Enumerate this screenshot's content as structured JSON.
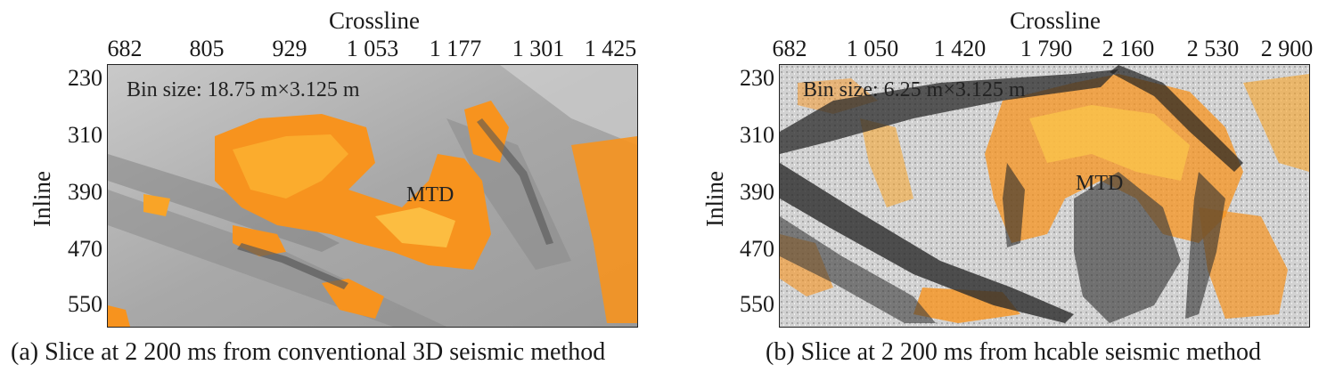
{
  "panels": [
    {
      "x_title": "Crossline",
      "y_title": "Inline",
      "x_ticks": [
        "682",
        "805",
        "929",
        "1 053",
        "1 177",
        "1 301",
        "1 425"
      ],
      "y_ticks": [
        "230",
        "310",
        "390",
        "470",
        "550"
      ],
      "bin_size": "Bin size: 18.75 m×3.125 m",
      "feature_label": "MTD",
      "caption": "(a) Slice at 2 200 ms from conventional 3D seismic method"
    },
    {
      "x_title": "Crossline",
      "y_title": "Inline",
      "x_ticks": [
        "682",
        "1 050",
        "1 420",
        "1 790",
        "2 160",
        "2 530",
        "2 900"
      ],
      "y_ticks": [
        "230",
        "310",
        "390",
        "470",
        "550"
      ],
      "bin_size": "Bin size: 6.25 m×3.125 m",
      "feature_label": "MTD",
      "caption": "(b) Slice at 2 200 ms from hcable seismic method"
    }
  ],
  "colors": {
    "background_gray": "#b9b9b9",
    "anomaly_orange": "#f7931e",
    "anomaly_yellow": "#fcc84a",
    "dark_fault": "#2a2a2a"
  }
}
